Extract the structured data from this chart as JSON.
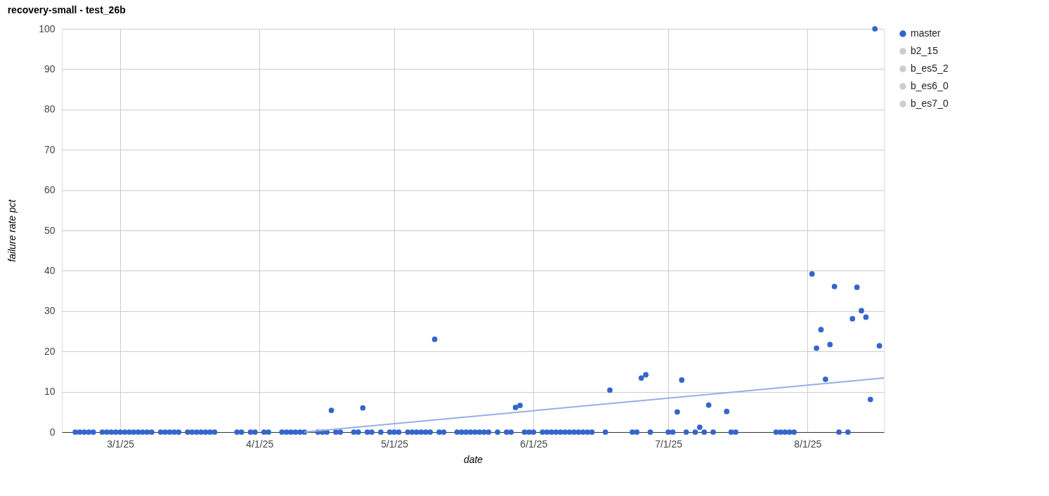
{
  "chart_data": {
    "type": "scatter",
    "title": "recovery-small - test_26b",
    "xlabel": "date",
    "ylabel": "failure rate pct",
    "xlim": [
      "2025-02-16",
      "2025-08-18"
    ],
    "xticks": [
      {
        "value": "2025-03-01",
        "label": "3/1/25"
      },
      {
        "value": "2025-04-01",
        "label": "4/1/25"
      },
      {
        "value": "2025-05-01",
        "label": "5/1/25"
      },
      {
        "value": "2025-06-01",
        "label": "6/1/25"
      },
      {
        "value": "2025-07-01",
        "label": "7/1/25"
      },
      {
        "value": "2025-08-01",
        "label": "8/1/25"
      }
    ],
    "ylim": [
      0,
      100
    ],
    "yticks": [
      0,
      10,
      20,
      30,
      40,
      50,
      60,
      70,
      80,
      90,
      100
    ],
    "grid": true,
    "legend": "right",
    "marker": "circle",
    "series": [
      {
        "name": "master",
        "color": "#3366cc",
        "x": [
          "2025-02-19",
          "2025-02-20",
          "2025-02-21",
          "2025-02-22",
          "2025-02-23",
          "2025-02-25",
          "2025-02-26",
          "2025-02-27",
          "2025-02-28",
          "2025-03-01",
          "2025-03-02",
          "2025-03-03",
          "2025-03-04",
          "2025-03-05",
          "2025-03-06",
          "2025-03-07",
          "2025-03-08",
          "2025-03-10",
          "2025-03-11",
          "2025-03-12",
          "2025-03-13",
          "2025-03-14",
          "2025-03-16",
          "2025-03-17",
          "2025-03-18",
          "2025-03-19",
          "2025-03-20",
          "2025-03-21",
          "2025-03-22",
          "2025-03-27",
          "2025-03-28",
          "2025-03-30",
          "2025-03-31",
          "2025-04-02",
          "2025-04-03",
          "2025-04-06",
          "2025-04-07",
          "2025-04-08",
          "2025-04-09",
          "2025-04-10",
          "2025-04-11",
          "2025-04-14",
          "2025-04-15",
          "2025-04-16",
          "2025-04-17",
          "2025-04-18",
          "2025-04-19",
          "2025-04-22",
          "2025-04-23",
          "2025-04-24",
          "2025-04-25",
          "2025-04-26",
          "2025-04-28",
          "2025-04-30",
          "2025-05-01",
          "2025-05-02",
          "2025-05-04",
          "2025-05-05",
          "2025-05-06",
          "2025-05-07",
          "2025-05-08",
          "2025-05-09",
          "2025-05-10",
          "2025-05-11",
          "2025-05-12",
          "2025-05-15",
          "2025-05-16",
          "2025-05-17",
          "2025-05-18",
          "2025-05-19",
          "2025-05-20",
          "2025-05-21",
          "2025-05-22",
          "2025-05-24",
          "2025-05-26",
          "2025-05-27",
          "2025-05-28",
          "2025-05-29",
          "2025-05-30",
          "2025-05-31",
          "2025-06-01",
          "2025-06-03",
          "2025-06-04",
          "2025-06-05",
          "2025-06-06",
          "2025-06-07",
          "2025-06-08",
          "2025-06-09",
          "2025-06-10",
          "2025-06-11",
          "2025-06-12",
          "2025-06-13",
          "2025-06-14",
          "2025-06-17",
          "2025-06-18",
          "2025-06-23",
          "2025-06-24",
          "2025-06-25",
          "2025-06-26",
          "2025-06-27",
          "2025-07-01",
          "2025-07-02",
          "2025-07-03",
          "2025-07-04",
          "2025-07-05",
          "2025-07-07",
          "2025-07-08",
          "2025-07-09",
          "2025-07-10",
          "2025-07-11",
          "2025-07-14",
          "2025-07-15",
          "2025-07-16",
          "2025-07-25",
          "2025-07-26",
          "2025-07-27",
          "2025-07-28",
          "2025-07-29",
          "2025-08-02",
          "2025-08-03",
          "2025-08-04",
          "2025-08-05",
          "2025-08-06",
          "2025-08-07",
          "2025-08-08",
          "2025-08-10",
          "2025-08-11",
          "2025-08-12",
          "2025-08-13",
          "2025-08-14",
          "2025-08-15",
          "2025-08-16",
          "2025-08-17"
        ],
        "values": [
          0,
          0,
          0,
          0,
          0,
          0,
          0,
          0,
          0,
          0,
          0,
          0,
          0,
          0,
          0,
          0,
          0,
          0,
          0,
          0,
          0,
          0,
          0,
          0,
          0,
          0,
          0,
          0,
          0,
          0,
          0,
          0,
          0,
          0,
          0,
          0,
          0,
          0,
          0,
          0,
          0,
          0,
          0,
          0,
          5.4,
          0,
          0,
          0,
          0,
          6.0,
          0,
          0,
          0,
          0,
          0,
          0,
          0,
          0,
          0,
          0,
          0,
          0,
          23.0,
          0,
          0,
          0,
          0,
          0,
          0,
          0,
          0,
          0,
          0,
          0,
          0,
          0,
          6.1,
          6.6,
          0,
          0,
          0,
          0,
          0,
          0,
          0,
          0,
          0,
          0,
          0,
          0,
          0,
          0,
          0,
          0,
          10.4,
          0,
          0,
          13.4,
          14.2,
          0,
          0,
          0,
          5.0,
          12.9,
          0,
          0,
          1.2,
          0,
          6.7,
          0,
          5.1,
          0,
          0,
          0,
          0,
          0,
          0,
          0,
          39.2,
          20.8,
          25.4,
          13.1,
          21.7,
          36.1,
          0,
          0,
          28.1,
          35.9,
          30.1,
          28.5,
          8.1,
          100,
          21.4
        ]
      },
      {
        "name": "b2_15",
        "color": "#cccccc"
      },
      {
        "name": "b_es5_2",
        "color": "#cccccc"
      },
      {
        "name": "b_es6_0",
        "color": "#cccccc"
      },
      {
        "name": "b_es7_0",
        "color": "#cccccc"
      },
      {
        "type": "line",
        "marker": "none",
        "color": "#97aee6",
        "x": [
          "2025-04-11",
          "2025-08-18"
        ],
        "values": [
          0,
          13.4
        ]
      }
    ]
  }
}
